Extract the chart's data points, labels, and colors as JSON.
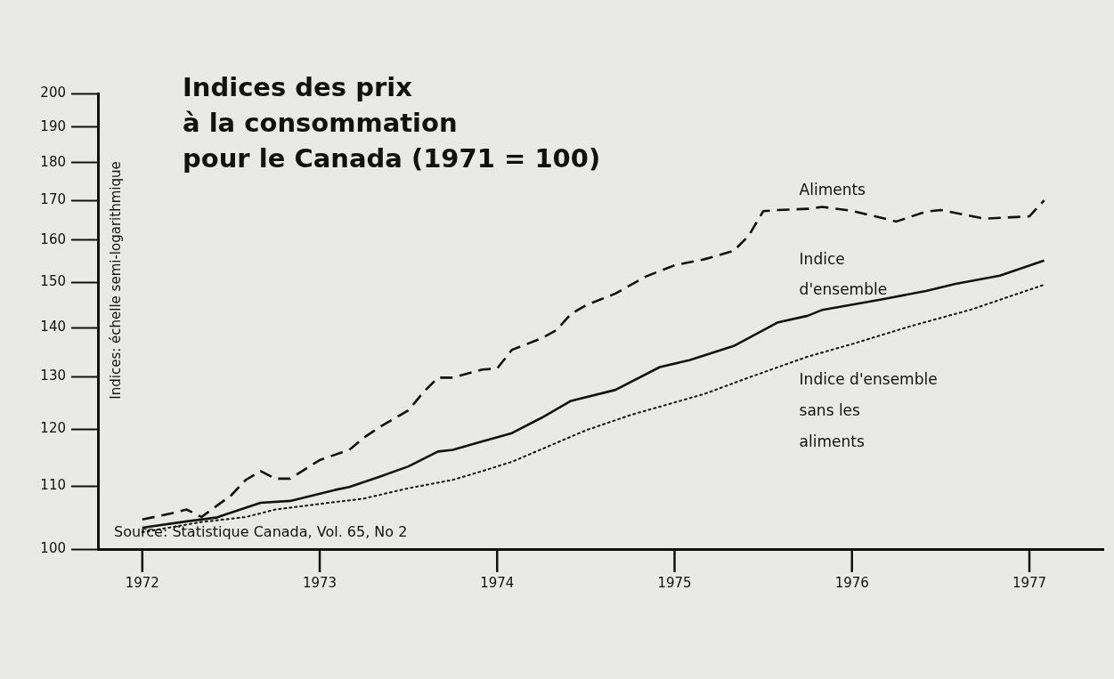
{
  "chart_data": {
    "type": "line",
    "title": "Indices des prix\nà la consommation\npour le Canada (1971 = 100)",
    "ylabel": "Indices: échelle semi-logarithmique",
    "annotations": [
      "Source: Statistique Canada, Vol. 65, No 2"
    ],
    "log": "y",
    "grid": false,
    "legend": false,
    "marker": "none",
    "ylim": [
      100,
      200
    ],
    "yticks": [
      100,
      110,
      120,
      130,
      140,
      150,
      160,
      170,
      180,
      190,
      200
    ],
    "xlim": [
      "1971-10",
      "1977-06"
    ],
    "xticks": [
      "1972",
      "1973",
      "1974",
      "1975",
      "1976",
      "1977"
    ],
    "series": [
      {
        "name": "Aliments",
        "color": "#111111",
        "line_style": "dashed",
        "x": [
          "1972-01",
          "1972-03",
          "1972-04",
          "1972-05",
          "1972-07",
          "1972-08",
          "1972-09",
          "1972-10",
          "1972-11",
          "1973-01",
          "1973-03",
          "1973-04",
          "1973-05",
          "1973-07",
          "1973-08",
          "1973-09",
          "1973-10",
          "1973-12",
          "1974-01",
          "1974-02",
          "1974-04",
          "1974-05",
          "1974-06",
          "1974-07",
          "1974-09",
          "1974-11",
          "1975-01",
          "1975-03",
          "1975-05",
          "1975-06",
          "1975-07",
          "1975-08",
          "1975-10",
          "1975-11",
          "1976-01",
          "1976-04",
          "1976-06",
          "1976-07",
          "1976-10",
          "1977-01",
          "1977-02"
        ],
        "values": [
          104.6,
          105.6,
          106.2,
          105.0,
          108.5,
          111.1,
          112.6,
          111.3,
          111.3,
          114.5,
          116.3,
          118.5,
          120.3,
          123.5,
          126.9,
          129.8,
          129.8,
          131.4,
          131.6,
          135.4,
          137.8,
          139.5,
          143.0,
          144.9,
          147.5,
          151.3,
          154.0,
          155.4,
          157.4,
          161.0,
          167.2,
          167.5,
          167.8,
          168.3,
          167.3,
          164.6,
          167.1,
          167.5,
          165.3,
          165.9,
          170.0
        ]
      },
      {
        "name": "Indice\nd'ensemble",
        "color": "#111111",
        "line_style": "solid",
        "x": [
          "1972-01",
          "1972-04",
          "1972-06",
          "1972-09",
          "1972-11",
          "1973-02",
          "1973-03",
          "1973-05",
          "1973-07",
          "1973-09",
          "1973-10",
          "1973-12",
          "1974-02",
          "1974-04",
          "1974-06",
          "1974-09",
          "1974-12",
          "1975-02",
          "1975-05",
          "1975-08",
          "1975-10",
          "1975-11",
          "1976-03",
          "1976-06",
          "1976-08",
          "1976-11",
          "1977-02"
        ],
        "values": [
          103.3,
          104.3,
          104.9,
          107.3,
          107.6,
          109.4,
          109.9,
          111.6,
          113.4,
          116.0,
          116.3,
          117.8,
          119.3,
          122.1,
          125.3,
          127.4,
          131.9,
          133.3,
          136.2,
          141.2,
          142.6,
          143.9,
          146.2,
          148.1,
          149.7,
          151.6,
          155.1
        ]
      },
      {
        "name": "Indice d'ensemble\nsans les\naliments",
        "color": "#111111",
        "line_style": "dotted",
        "x": [
          "1972-01",
          "1972-05",
          "1972-08",
          "1972-10",
          "1973-01",
          "1973-04",
          "1973-07",
          "1973-10",
          "1973-12",
          "1974-02",
          "1974-04",
          "1974-07",
          "1974-10",
          "1975-03",
          "1975-06",
          "1975-10",
          "1976-01",
          "1976-05",
          "1976-09",
          "1977-02"
        ],
        "values": [
          102.6,
          104.2,
          105.0,
          106.2,
          107.1,
          108.0,
          109.7,
          111.1,
          112.6,
          114.2,
          116.4,
          119.8,
          122.6,
          126.6,
          129.8,
          134.0,
          136.6,
          140.4,
          143.9,
          149.5
        ]
      }
    ]
  }
}
